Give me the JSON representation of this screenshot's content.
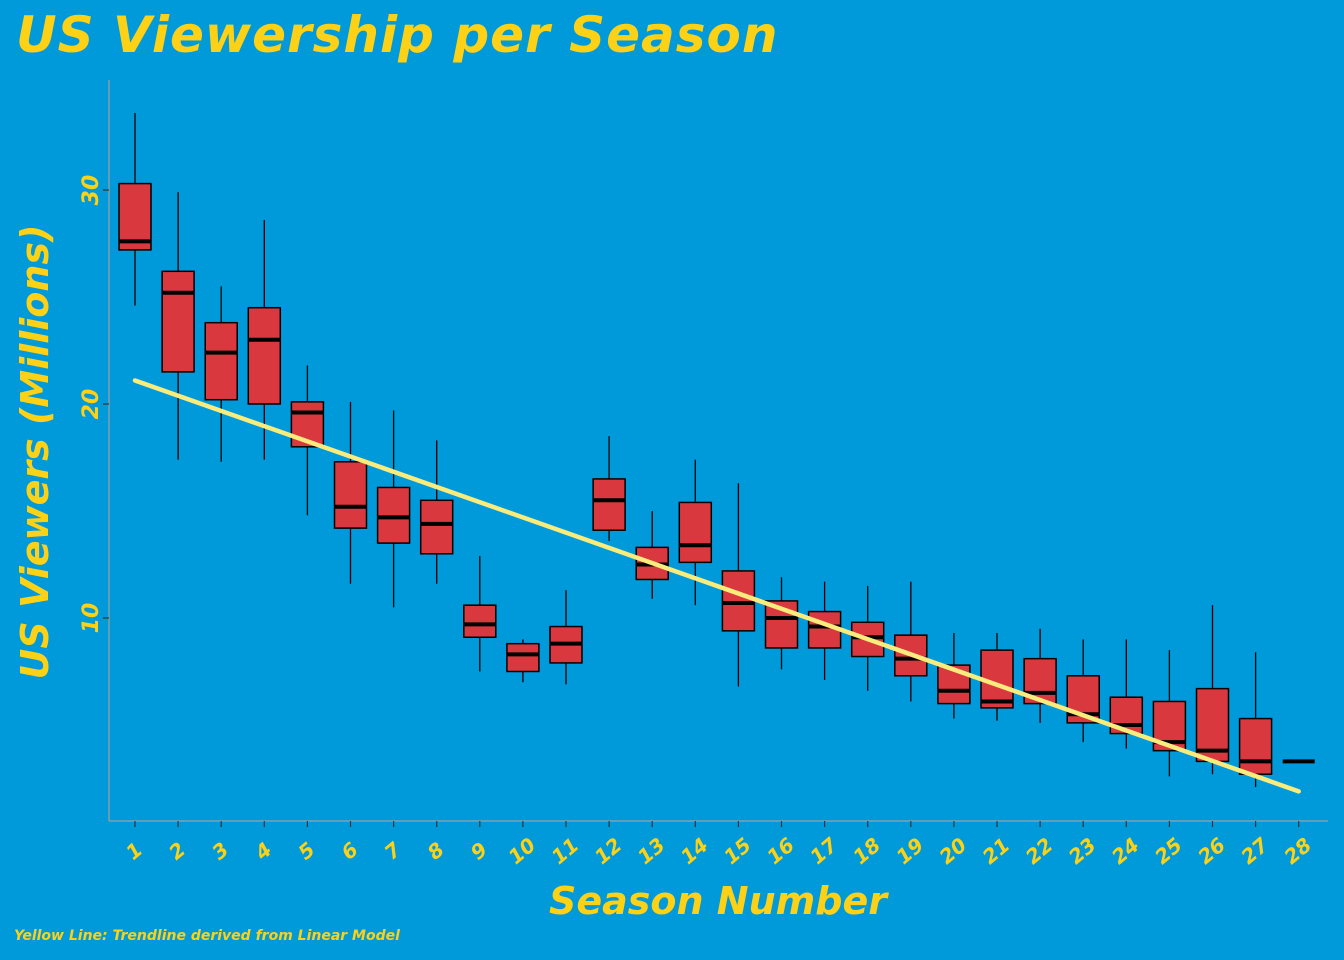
{
  "title": "US Viewership per Season",
  "caption": "Yellow Line: Trendline derived from Linear Model",
  "colors": {
    "background": "#009ADA",
    "text": "#FCD116",
    "box_fill": "#D9383F",
    "trend": "#FAEB7D",
    "axis": "#A0A0A0"
  },
  "chart_data": {
    "type": "boxplot",
    "title": "US Viewership per Season",
    "xlabel": "Season Number",
    "ylabel": "US Viewers (Millions)",
    "ylim": [
      0.5,
      35
    ],
    "yticks": [
      10,
      20,
      30
    ],
    "grid": false,
    "categories": [
      "1",
      "2",
      "3",
      "4",
      "5",
      "6",
      "7",
      "8",
      "9",
      "10",
      "11",
      "12",
      "13",
      "14",
      "15",
      "16",
      "17",
      "18",
      "19",
      "20",
      "21",
      "22",
      "23",
      "24",
      "25",
      "26",
      "27",
      "28"
    ],
    "boxes": [
      {
        "season": "1",
        "min": 24.6,
        "q1": 27.2,
        "median": 27.6,
        "q3": 30.3,
        "max": 33.6
      },
      {
        "season": "2",
        "min": 17.4,
        "q1": 21.5,
        "median": 25.2,
        "q3": 26.2,
        "max": 29.9
      },
      {
        "season": "3",
        "min": 17.3,
        "q1": 20.2,
        "median": 22.4,
        "q3": 23.8,
        "max": 25.5
      },
      {
        "season": "4",
        "min": 17.4,
        "q1": 20.0,
        "median": 23.0,
        "q3": 24.5,
        "max": 28.6
      },
      {
        "season": "5",
        "min": 14.8,
        "q1": 18.0,
        "median": 19.6,
        "q3": 20.1,
        "max": 21.8
      },
      {
        "season": "6",
        "min": 11.6,
        "q1": 14.2,
        "median": 15.2,
        "q3": 17.3,
        "max": 20.1
      },
      {
        "season": "7",
        "min": 10.5,
        "q1": 13.5,
        "median": 14.7,
        "q3": 16.1,
        "max": 19.7
      },
      {
        "season": "8",
        "min": 11.6,
        "q1": 13.0,
        "median": 14.4,
        "q3": 15.5,
        "max": 18.3
      },
      {
        "season": "9",
        "min": 7.5,
        "q1": 9.1,
        "median": 9.7,
        "q3": 10.6,
        "max": 12.9
      },
      {
        "season": "10",
        "min": 7.0,
        "q1": 7.5,
        "median": 8.3,
        "q3": 8.8,
        "max": 9.0
      },
      {
        "season": "11",
        "min": 6.9,
        "q1": 7.9,
        "median": 8.8,
        "q3": 9.6,
        "max": 11.3
      },
      {
        "season": "12",
        "min": 13.6,
        "q1": 14.1,
        "median": 15.5,
        "q3": 16.5,
        "max": 18.5
      },
      {
        "season": "13",
        "min": 10.9,
        "q1": 11.8,
        "median": 12.5,
        "q3": 13.3,
        "max": 15.0
      },
      {
        "season": "14",
        "min": 10.6,
        "q1": 12.6,
        "median": 13.4,
        "q3": 15.4,
        "max": 17.4
      },
      {
        "season": "15",
        "min": 6.8,
        "q1": 9.4,
        "median": 10.7,
        "q3": 12.2,
        "max": 16.3
      },
      {
        "season": "16",
        "min": 7.6,
        "q1": 8.6,
        "median": 10.0,
        "q3": 10.8,
        "max": 11.9
      },
      {
        "season": "17",
        "min": 7.1,
        "q1": 8.6,
        "median": 9.6,
        "q3": 10.3,
        "max": 11.7
      },
      {
        "season": "18",
        "min": 6.6,
        "q1": 8.2,
        "median": 9.1,
        "q3": 9.8,
        "max": 11.5
      },
      {
        "season": "19",
        "min": 6.1,
        "q1": 7.3,
        "median": 8.1,
        "q3": 9.2,
        "max": 11.7
      },
      {
        "season": "20",
        "min": 5.3,
        "q1": 6.0,
        "median": 6.6,
        "q3": 7.8,
        "max": 9.3
      },
      {
        "season": "21",
        "min": 5.2,
        "q1": 5.8,
        "median": 6.1,
        "q3": 8.5,
        "max": 9.3
      },
      {
        "season": "22",
        "min": 5.1,
        "q1": 6.0,
        "median": 6.5,
        "q3": 8.1,
        "max": 9.5
      },
      {
        "season": "23",
        "min": 4.2,
        "q1": 5.1,
        "median": 5.5,
        "q3": 7.3,
        "max": 9.0
      },
      {
        "season": "24",
        "min": 3.9,
        "q1": 4.6,
        "median": 5.0,
        "q3": 6.3,
        "max": 9.0
      },
      {
        "season": "25",
        "min": 2.6,
        "q1": 3.8,
        "median": 4.2,
        "q3": 6.1,
        "max": 8.5
      },
      {
        "season": "26",
        "min": 2.7,
        "q1": 3.3,
        "median": 3.8,
        "q3": 6.7,
        "max": 10.6
      },
      {
        "season": "27",
        "min": 2.1,
        "q1": 2.7,
        "median": 3.3,
        "q3": 5.3,
        "max": 8.4
      },
      {
        "season": "28",
        "min": 3.3,
        "q1": 3.3,
        "median": 3.3,
        "q3": 3.3,
        "max": 3.3
      }
    ],
    "trendline": {
      "from_season": "1",
      "from_value": 21.1,
      "to_season": "28",
      "to_value": 1.9,
      "label": "Trendline derived from Linear Model"
    }
  }
}
